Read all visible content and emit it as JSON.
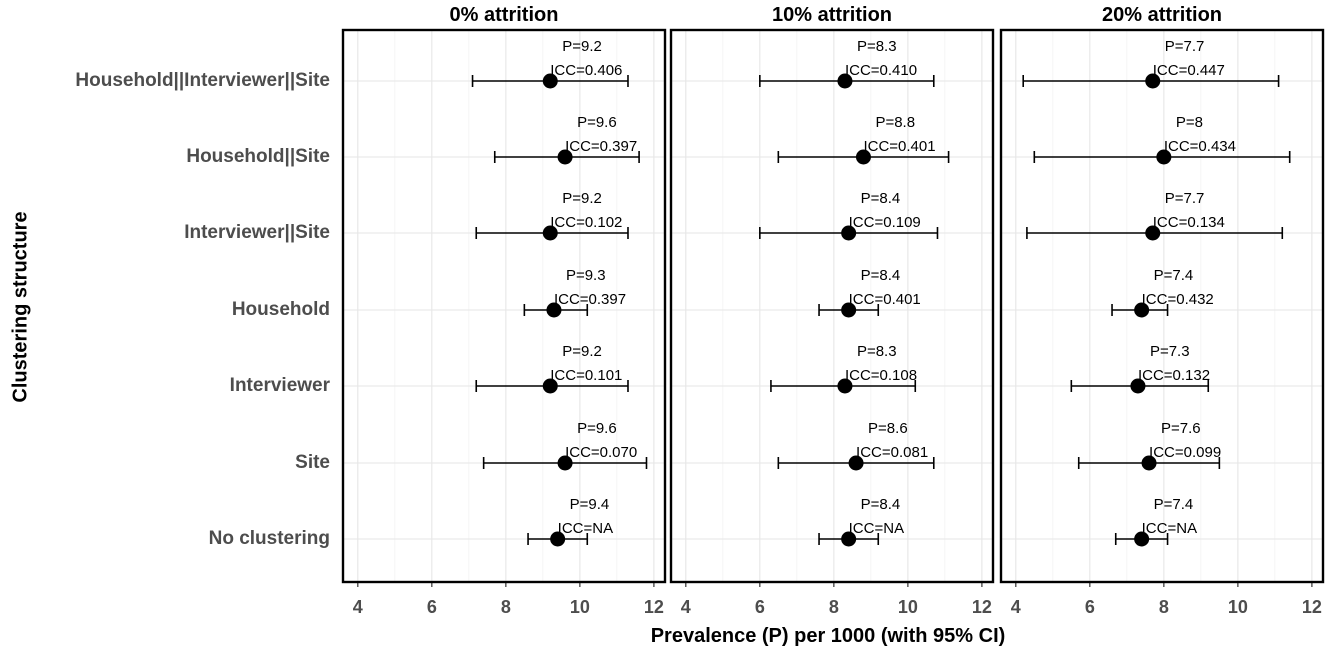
{
  "chart_data": {
    "type": "scatter",
    "subtype": "forest-plot-with-error-bars",
    "xlabel": "Prevalence (P) per 1000 (with 95% CI)",
    "ylabel": "Clustering structure",
    "xlim": [
      3.6,
      12.3
    ],
    "xticks": [
      4,
      6,
      8,
      10,
      12
    ],
    "grid": true,
    "categories": [
      "Household||Interviewer||Site",
      "Household||Site",
      "Interviewer||Site",
      "Household",
      "Interviewer",
      "Site",
      "No clustering"
    ],
    "panels": [
      {
        "title": "0% attrition",
        "rows": [
          {
            "category": "Household||Interviewer||Site",
            "p": 9.2,
            "lo": 7.1,
            "hi": 11.3,
            "p_label": "P=9.2",
            "icc_label": "ICC=0.406"
          },
          {
            "category": "Household||Site",
            "p": 9.6,
            "lo": 7.7,
            "hi": 11.6,
            "p_label": "P=9.6",
            "icc_label": "ICC=0.397"
          },
          {
            "category": "Interviewer||Site",
            "p": 9.2,
            "lo": 7.2,
            "hi": 11.3,
            "p_label": "P=9.2",
            "icc_label": "ICC=0.102"
          },
          {
            "category": "Household",
            "p": 9.3,
            "lo": 8.5,
            "hi": 10.2,
            "p_label": "P=9.3",
            "icc_label": "ICC=0.397"
          },
          {
            "category": "Interviewer",
            "p": 9.2,
            "lo": 7.2,
            "hi": 11.3,
            "p_label": "P=9.2",
            "icc_label": "ICC=0.101"
          },
          {
            "category": "Site",
            "p": 9.6,
            "lo": 7.4,
            "hi": 11.8,
            "p_label": "P=9.6",
            "icc_label": "ICC=0.070"
          },
          {
            "category": "No clustering",
            "p": 9.4,
            "lo": 8.6,
            "hi": 10.2,
            "p_label": "P=9.4",
            "icc_label": "ICC=NA"
          }
        ]
      },
      {
        "title": "10% attrition",
        "rows": [
          {
            "category": "Household||Interviewer||Site",
            "p": 8.3,
            "lo": 6.0,
            "hi": 10.7,
            "p_label": "P=8.3",
            "icc_label": "ICC=0.410"
          },
          {
            "category": "Household||Site",
            "p": 8.8,
            "lo": 6.5,
            "hi": 11.1,
            "p_label": "P=8.8",
            "icc_label": "ICC=0.401"
          },
          {
            "category": "Interviewer||Site",
            "p": 8.4,
            "lo": 6.0,
            "hi": 10.8,
            "p_label": "P=8.4",
            "icc_label": "ICC=0.109"
          },
          {
            "category": "Household",
            "p": 8.4,
            "lo": 7.6,
            "hi": 9.2,
            "p_label": "P=8.4",
            "icc_label": "ICC=0.401"
          },
          {
            "category": "Interviewer",
            "p": 8.3,
            "lo": 6.3,
            "hi": 10.2,
            "p_label": "P=8.3",
            "icc_label": "ICC=0.108"
          },
          {
            "category": "Site",
            "p": 8.6,
            "lo": 6.5,
            "hi": 10.7,
            "p_label": "P=8.6",
            "icc_label": "ICC=0.081"
          },
          {
            "category": "No clustering",
            "p": 8.4,
            "lo": 7.6,
            "hi": 9.2,
            "p_label": "P=8.4",
            "icc_label": "ICC=NA"
          }
        ]
      },
      {
        "title": "20% attrition",
        "rows": [
          {
            "category": "Household||Interviewer||Site",
            "p": 7.7,
            "lo": 4.2,
            "hi": 11.1,
            "p_label": "P=7.7",
            "icc_label": "ICC=0.447"
          },
          {
            "category": "Household||Site",
            "p": 8.0,
            "lo": 4.5,
            "hi": 11.4,
            "p_label": "P=8",
            "icc_label": "ICC=0.434"
          },
          {
            "category": "Interviewer||Site",
            "p": 7.7,
            "lo": 4.3,
            "hi": 11.2,
            "p_label": "P=7.7",
            "icc_label": "ICC=0.134"
          },
          {
            "category": "Household",
            "p": 7.4,
            "lo": 6.6,
            "hi": 8.1,
            "p_label": "P=7.4",
            "icc_label": "ICC=0.432"
          },
          {
            "category": "Interviewer",
            "p": 7.3,
            "lo": 5.5,
            "hi": 9.2,
            "p_label": "P=7.3",
            "icc_label": "ICC=0.132"
          },
          {
            "category": "Site",
            "p": 7.6,
            "lo": 5.7,
            "hi": 9.5,
            "p_label": "P=7.6",
            "icc_label": "ICC=0.099"
          },
          {
            "category": "No clustering",
            "p": 7.4,
            "lo": 6.7,
            "hi": 8.1,
            "p_label": "P=7.4",
            "icc_label": "ICC=NA"
          }
        ]
      }
    ]
  }
}
